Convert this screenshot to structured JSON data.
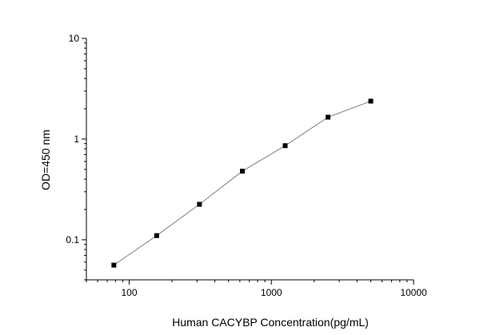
{
  "chart_data": {
    "type": "line",
    "xlabel": "Human CACYBP Concentration(pg/mL)",
    "ylabel": "OD=450 nm",
    "xscale": "log",
    "yscale": "log",
    "xlim": [
      50,
      10000
    ],
    "ylim": [
      0.04,
      10
    ],
    "x_ticks": [
      100,
      1000,
      10000
    ],
    "x_tick_labels": [
      "100",
      "1000",
      "10000"
    ],
    "y_ticks": [
      0.1,
      1,
      10
    ],
    "y_tick_labels": [
      "0.1",
      "1",
      "10"
    ],
    "grid": false,
    "legend": false,
    "series": [
      {
        "x": [
          78,
          156,
          312,
          625,
          1250,
          2500,
          5000
        ],
        "y": [
          0.056,
          0.11,
          0.225,
          0.48,
          0.86,
          1.65,
          2.38
        ]
      }
    ],
    "colors": {
      "line": "#808080",
      "marker": "#000000",
      "axis": "#000000"
    }
  }
}
